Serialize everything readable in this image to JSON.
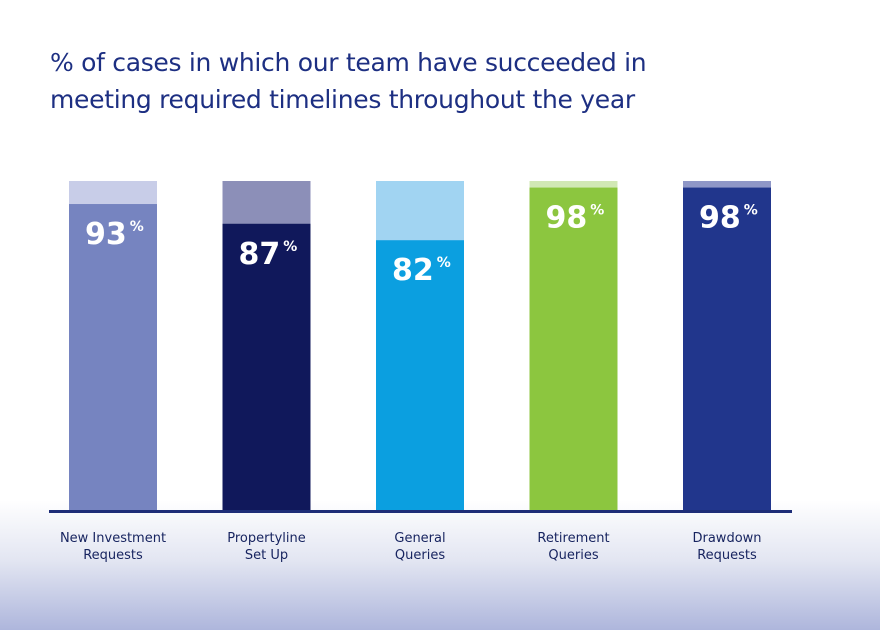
{
  "chart_data": {
    "type": "bar",
    "title": "% of cases in which our team have succeeded in\nmeeting required timelines throughout the year",
    "categories": [
      [
        "New Investment",
        "Requests"
      ],
      [
        "Propertyline",
        "Set Up"
      ],
      [
        "General",
        "Queries"
      ],
      [
        "Retirement",
        "Queries"
      ],
      [
        "Drawdown",
        "Requests"
      ]
    ],
    "values": [
      93,
      87,
      82,
      98,
      98
    ],
    "value_suffix": "%",
    "ylim": [
      0,
      100
    ],
    "xlabel": "",
    "ylabel": "",
    "grid": false,
    "legend": "none",
    "colors": [
      "#7684c0",
      "#10185b",
      "#0b9fe0",
      "#8cc63f",
      "#21368c"
    ],
    "track_colors": [
      "#c8cde8",
      "#8c8fb8",
      "#a1d4f2",
      "#d1e8b4",
      "#8f97c7"
    ],
    "baseline_color": "#1e2d78"
  }
}
